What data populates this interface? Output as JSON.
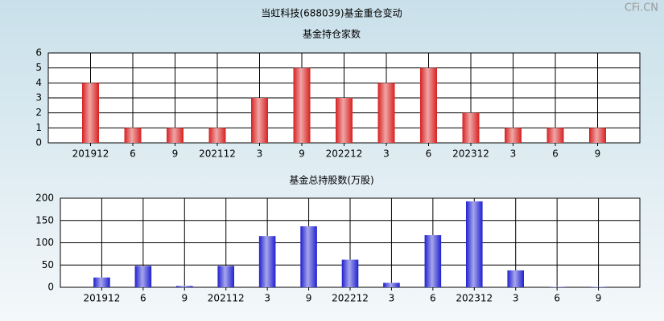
{
  "title": "当虹科技(688039)基金重仓变动",
  "watermark": "CFi.CN",
  "chart_data": [
    {
      "type": "bar",
      "title": "基金持仓家数",
      "categories": [
        "201912",
        "6",
        "9",
        "202112",
        "3",
        "9",
        "202212",
        "3",
        "6",
        "202312",
        "3",
        "6",
        "9"
      ],
      "values": [
        4,
        1,
        1,
        1,
        3,
        5,
        3,
        4,
        5,
        2,
        1,
        1,
        1
      ],
      "color": "#d82020",
      "ylim": [
        0,
        6
      ],
      "yticks": [
        0,
        1,
        2,
        3,
        4,
        5,
        6
      ],
      "grid": true
    },
    {
      "type": "bar",
      "title": "基金总持股数(万股)",
      "categories": [
        "201912",
        "6",
        "9",
        "202112",
        "3",
        "9",
        "202212",
        "3",
        "6",
        "202312",
        "3",
        "6",
        "9"
      ],
      "values": [
        22,
        48,
        3,
        48,
        115,
        137,
        62,
        10,
        117,
        193,
        38,
        1,
        1
      ],
      "color": "#2020d0",
      "ylim": [
        0,
        200
      ],
      "yticks": [
        0,
        50,
        100,
        150,
        200
      ],
      "grid": true
    }
  ]
}
